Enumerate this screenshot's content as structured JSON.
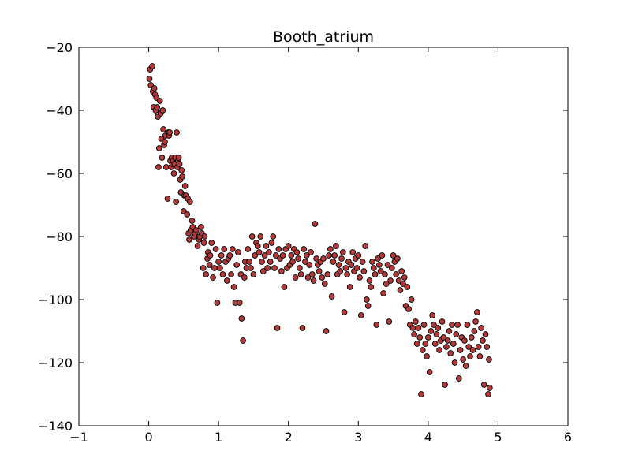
{
  "chart_data": {
    "type": "scatter",
    "title": "Booth_atrium",
    "xlabel": "",
    "ylabel": "",
    "xlim": [
      -1,
      6
    ],
    "ylim": [
      -140,
      -20
    ],
    "xticks": [
      -1,
      0,
      1,
      2,
      3,
      4,
      5,
      6
    ],
    "xtick_labels": [
      "−1",
      "0",
      "1",
      "2",
      "3",
      "4",
      "5",
      "6"
    ],
    "yticks": [
      -140,
      -120,
      -100,
      -80,
      -60,
      -40,
      -20
    ],
    "ytick_labels": [
      "−140",
      "−120",
      "−100",
      "−80",
      "−60",
      "−40",
      "−20"
    ],
    "grid": false,
    "marker_color": "#b03a3a",
    "marker_edge": "#000000",
    "series": [
      {
        "points": [
          [
            0.01,
            -30
          ],
          [
            0.02,
            -27
          ],
          [
            0.03,
            -32
          ],
          [
            0.05,
            -26
          ],
          [
            0.06,
            -34
          ],
          [
            0.07,
            -39
          ],
          [
            0.08,
            -33
          ],
          [
            0.09,
            -35
          ],
          [
            0.1,
            -40
          ],
          [
            0.11,
            -36
          ],
          [
            0.12,
            -39
          ],
          [
            0.13,
            -42
          ],
          [
            0.14,
            -58
          ],
          [
            0.15,
            -52
          ],
          [
            0.16,
            -37
          ],
          [
            0.17,
            -41
          ],
          [
            0.18,
            -49
          ],
          [
            0.19,
            -55
          ],
          [
            0.2,
            -40
          ],
          [
            0.21,
            -46
          ],
          [
            0.22,
            -51
          ],
          [
            0.23,
            -50
          ],
          [
            0.24,
            -48
          ],
          [
            0.25,
            -58
          ],
          [
            0.27,
            -68
          ],
          [
            0.28,
            -47
          ],
          [
            0.29,
            -48
          ],
          [
            0.3,
            -47
          ],
          [
            0.31,
            -56
          ],
          [
            0.32,
            -58
          ],
          [
            0.33,
            -55
          ],
          [
            0.34,
            -57
          ],
          [
            0.35,
            -56
          ],
          [
            0.36,
            -60
          ],
          [
            0.37,
            -57
          ],
          [
            0.38,
            -55
          ],
          [
            0.39,
            -69
          ],
          [
            0.4,
            -47
          ],
          [
            0.41,
            -58
          ],
          [
            0.42,
            -56
          ],
          [
            0.43,
            -55
          ],
          [
            0.44,
            -57
          ],
          [
            0.45,
            -62
          ],
          [
            0.46,
            -66
          ],
          [
            0.47,
            -59
          ],
          [
            0.48,
            -61
          ],
          [
            0.5,
            -72
          ],
          [
            0.51,
            -67
          ],
          [
            0.52,
            -64
          ],
          [
            0.53,
            -67
          ],
          [
            0.55,
            -73
          ],
          [
            0.56,
            -68
          ],
          [
            0.57,
            -79
          ],
          [
            0.58,
            -81
          ],
          [
            0.59,
            -69
          ],
          [
            0.6,
            -78
          ],
          [
            0.62,
            -75
          ],
          [
            0.63,
            -77
          ],
          [
            0.65,
            -80
          ],
          [
            0.66,
            -79
          ],
          [
            0.68,
            -78
          ],
          [
            0.7,
            -83
          ],
          [
            0.72,
            -81
          ],
          [
            0.73,
            -80
          ],
          [
            0.75,
            -77
          ],
          [
            0.76,
            -79
          ],
          [
            0.78,
            -90
          ],
          [
            0.79,
            -82
          ],
          [
            0.8,
            -80
          ],
          [
            0.82,
            -92
          ],
          [
            0.84,
            -87
          ],
          [
            0.85,
            -85
          ],
          [
            0.87,
            -89
          ],
          [
            0.88,
            -86
          ],
          [
            0.9,
            -82
          ],
          [
            0.92,
            -93
          ],
          [
            0.94,
            -90
          ],
          [
            0.96,
            -84
          ],
          [
            0.98,
            -101
          ],
          [
            1.0,
            -88
          ],
          [
            1.02,
            -90
          ],
          [
            1.04,
            -86
          ],
          [
            1.06,
            -92
          ],
          [
            1.08,
            -84
          ],
          [
            1.1,
            -88
          ],
          [
            1.12,
            -94
          ],
          [
            1.14,
            -87
          ],
          [
            1.16,
            -86
          ],
          [
            1.18,
            -92
          ],
          [
            1.2,
            -84
          ],
          [
            1.22,
            -96
          ],
          [
            1.24,
            -101
          ],
          [
            1.26,
            -89
          ],
          [
            1.28,
            -85
          ],
          [
            1.3,
            -101
          ],
          [
            1.32,
            -92
          ],
          [
            1.33,
            -106
          ],
          [
            1.35,
            -113
          ],
          [
            1.37,
            -93
          ],
          [
            1.38,
            -88
          ],
          [
            1.4,
            -90
          ],
          [
            1.42,
            -84
          ],
          [
            1.44,
            -88
          ],
          [
            1.46,
            -90
          ],
          [
            1.48,
            -80
          ],
          [
            1.5,
            -92
          ],
          [
            1.52,
            -86
          ],
          [
            1.54,
            -82
          ],
          [
            1.56,
            -83
          ],
          [
            1.58,
            -85
          ],
          [
            1.6,
            -80
          ],
          [
            1.62,
            -88
          ],
          [
            1.64,
            -91
          ],
          [
            1.66,
            -86
          ],
          [
            1.68,
            -83
          ],
          [
            1.7,
            -90
          ],
          [
            1.72,
            -85
          ],
          [
            1.74,
            -88
          ],
          [
            1.76,
            -82
          ],
          [
            1.78,
            -80
          ],
          [
            1.8,
            -90
          ],
          [
            1.82,
            -86
          ],
          [
            1.84,
            -109
          ],
          [
            1.86,
            -84
          ],
          [
            1.88,
            -87
          ],
          [
            1.9,
            -91
          ],
          [
            1.92,
            -86
          ],
          [
            1.94,
            -96
          ],
          [
            1.96,
            -84
          ],
          [
            1.98,
            -90
          ],
          [
            2.0,
            -83
          ],
          [
            2.02,
            -89
          ],
          [
            2.04,
            -86
          ],
          [
            2.06,
            -88
          ],
          [
            2.08,
            -84
          ],
          [
            2.1,
            -93
          ],
          [
            2.12,
            -85
          ],
          [
            2.14,
            -87
          ],
          [
            2.16,
            -90
          ],
          [
            2.18,
            -92
          ],
          [
            2.2,
            -109
          ],
          [
            2.22,
            -84
          ],
          [
            2.24,
            -88
          ],
          [
            2.26,
            -86
          ],
          [
            2.28,
            -93
          ],
          [
            2.3,
            -89
          ],
          [
            2.32,
            -85
          ],
          [
            2.34,
            -92
          ],
          [
            2.36,
            -94
          ],
          [
            2.38,
            -76
          ],
          [
            2.4,
            -87
          ],
          [
            2.42,
            -89
          ],
          [
            2.44,
            -91
          ],
          [
            2.46,
            -88
          ],
          [
            2.48,
            -93
          ],
          [
            2.5,
            -87
          ],
          [
            2.52,
            -95
          ],
          [
            2.54,
            -110
          ],
          [
            2.56,
            -92
          ],
          [
            2.58,
            -86
          ],
          [
            2.6,
            -84
          ],
          [
            2.62,
            -99
          ],
          [
            2.64,
            -88
          ],
          [
            2.66,
            -86
          ],
          [
            2.68,
            -83
          ],
          [
            2.7,
            -92
          ],
          [
            2.72,
            -89
          ],
          [
            2.74,
            -91
          ],
          [
            2.76,
            -87
          ],
          [
            2.78,
            -85
          ],
          [
            2.8,
            -104
          ],
          [
            2.82,
            -90
          ],
          [
            2.84,
            -92
          ],
          [
            2.86,
            -88
          ],
          [
            2.88,
            -96
          ],
          [
            2.9,
            -89
          ],
          [
            2.92,
            -85
          ],
          [
            2.94,
            -91
          ],
          [
            2.96,
            -87
          ],
          [
            2.98,
            -90
          ],
          [
            3.0,
            -86
          ],
          [
            3.02,
            -93
          ],
          [
            3.04,
            -105
          ],
          [
            3.06,
            -88
          ],
          [
            3.08,
            -91
          ],
          [
            3.1,
            -83
          ],
          [
            3.12,
            -100
          ],
          [
            3.14,
            -102
          ],
          [
            3.16,
            -94
          ],
          [
            3.18,
            -96
          ],
          [
            3.2,
            -88
          ],
          [
            3.22,
            -90
          ],
          [
            3.24,
            -92
          ],
          [
            3.26,
            -108
          ],
          [
            3.28,
            -87
          ],
          [
            3.3,
            -89
          ],
          [
            3.32,
            -91
          ],
          [
            3.34,
            -86
          ],
          [
            3.36,
            -98
          ],
          [
            3.38,
            -92
          ],
          [
            3.4,
            -95
          ],
          [
            3.42,
            -89
          ],
          [
            3.44,
            -107
          ],
          [
            3.46,
            -94
          ],
          [
            3.48,
            -90
          ],
          [
            3.5,
            -86
          ],
          [
            3.52,
            -88
          ],
          [
            3.54,
            -92
          ],
          [
            3.56,
            -87
          ],
          [
            3.58,
            -94
          ],
          [
            3.6,
            -97
          ],
          [
            3.62,
            -91
          ],
          [
            3.64,
            -95
          ],
          [
            3.66,
            -93
          ],
          [
            3.68,
            -102
          ],
          [
            3.7,
            -96
          ],
          [
            3.72,
            -103
          ],
          [
            3.74,
            -108
          ],
          [
            3.76,
            -100
          ],
          [
            3.78,
            -109
          ],
          [
            3.8,
            -111
          ],
          [
            3.82,
            -107
          ],
          [
            3.84,
            -114
          ],
          [
            3.86,
            -109
          ],
          [
            3.88,
            -112
          ],
          [
            3.9,
            -130
          ],
          [
            3.92,
            -116
          ],
          [
            3.94,
            -108
          ],
          [
            3.96,
            -114
          ],
          [
            3.98,
            -118
          ],
          [
            4.0,
            -112
          ],
          [
            4.02,
            -123
          ],
          [
            4.04,
            -110
          ],
          [
            4.06,
            -105
          ],
          [
            4.08,
            -108
          ],
          [
            4.1,
            -114
          ],
          [
            4.12,
            -111
          ],
          [
            4.14,
            -109
          ],
          [
            4.16,
            -116
          ],
          [
            4.18,
            -113
          ],
          [
            4.2,
            -107
          ],
          [
            4.22,
            -112
          ],
          [
            4.24,
            -127
          ],
          [
            4.26,
            -115
          ],
          [
            4.28,
            -113
          ],
          [
            4.3,
            -110
          ],
          [
            4.32,
            -117
          ],
          [
            4.34,
            -108
          ],
          [
            4.36,
            -114
          ],
          [
            4.38,
            -120
          ],
          [
            4.4,
            -111
          ],
          [
            4.42,
            -108
          ],
          [
            4.44,
            -125
          ],
          [
            4.46,
            -116
          ],
          [
            4.48,
            -112
          ],
          [
            4.5,
            -119
          ],
          [
            4.52,
            -113
          ],
          [
            4.54,
            -121
          ],
          [
            4.56,
            -108
          ],
          [
            4.58,
            -115
          ],
          [
            4.6,
            -118
          ],
          [
            4.62,
            -112
          ],
          [
            4.64,
            -116
          ],
          [
            4.66,
            -110
          ],
          [
            4.68,
            -107
          ],
          [
            4.7,
            -104
          ],
          [
            4.72,
            -115
          ],
          [
            4.74,
            -118
          ],
          [
            4.76,
            -109
          ],
          [
            4.78,
            -113
          ],
          [
            4.8,
            -127
          ],
          [
            4.82,
            -111
          ],
          [
            4.84,
            -115
          ],
          [
            4.86,
            -130
          ],
          [
            4.87,
            -119
          ],
          [
            4.88,
            -128
          ]
        ]
      }
    ]
  }
}
